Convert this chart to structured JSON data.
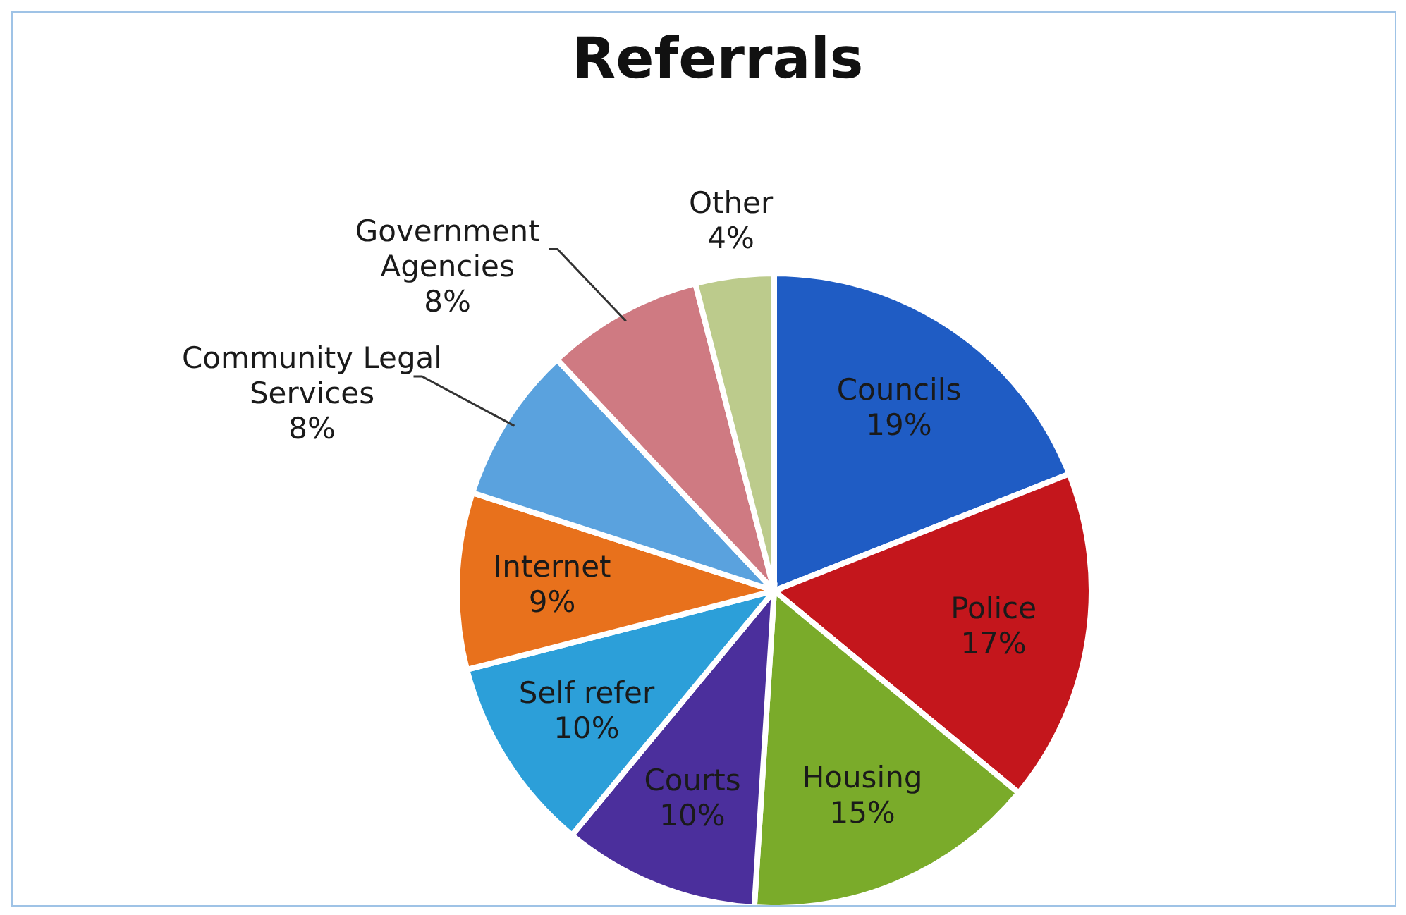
{
  "chart_data": {
    "type": "pie",
    "title": "Referrals",
    "categories": [
      "Councils",
      "Police",
      "Housing",
      "Courts",
      "Self refer",
      "Internet",
      "Community Legal Services",
      "Government Agencies",
      "Other"
    ],
    "values": [
      19,
      17,
      15,
      10,
      10,
      9,
      8,
      8,
      4
    ],
    "value_labels": [
      "19%",
      "17%",
      "15%",
      "10%",
      "10%",
      "9%",
      "8%",
      "8%",
      "4%"
    ],
    "colors": [
      "#1f5cc4",
      "#c4161c",
      "#7aab2a",
      "#4b2f9c",
      "#2c9fd9",
      "#e8711c",
      "#5aa2de",
      "#cf7a82",
      "#bccb8c"
    ],
    "legend": false
  }
}
